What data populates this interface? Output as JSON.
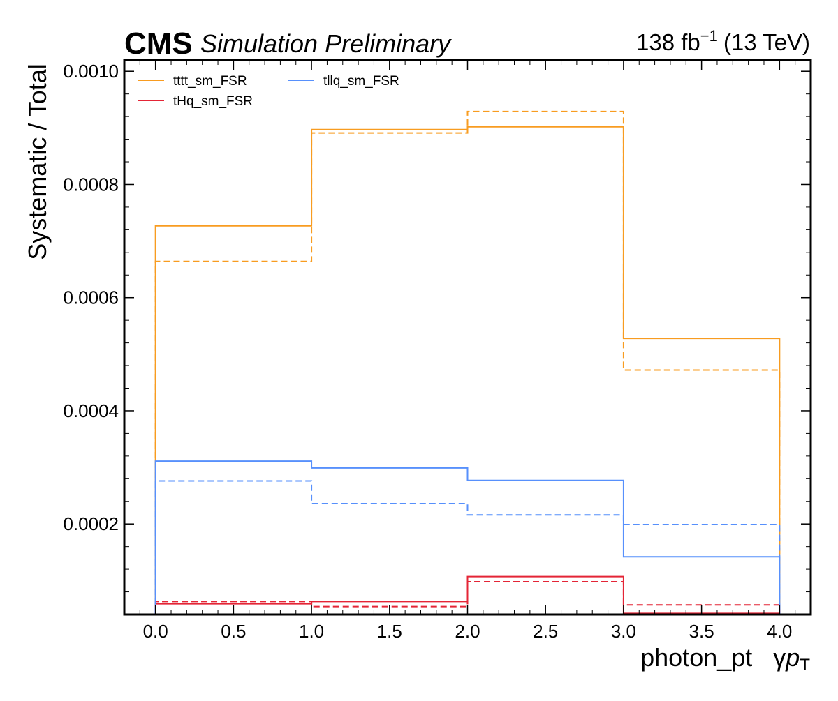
{
  "header": {
    "experiment": "CMS",
    "status": "Simulation Preliminary",
    "lumi_value": "138 fb",
    "lumi_exponent": "−1",
    "energy": "(13 TeV)"
  },
  "chart_data": {
    "type": "line",
    "drawstyle": "step-histogram",
    "xlabel": "photon_pt   γpT",
    "xlabel_parts": {
      "name": "photon_pt",
      "symbol": "γ",
      "var": "p",
      "sub": "T"
    },
    "ylabel": "Systematic / Total",
    "xlim": [
      -0.2,
      4.2
    ],
    "ylim": [
      4e-05,
      0.00102
    ],
    "bin_edges": [
      0.0,
      1.0,
      2.0,
      3.0,
      4.0
    ],
    "x_ticks": [
      "0.0",
      "0.5",
      "1.0",
      "1.5",
      "2.0",
      "2.5",
      "3.0",
      "3.5",
      "4.0"
    ],
    "y_ticks": [
      "0.0002",
      "0.0004",
      "0.0006",
      "0.0008",
      "0.0010"
    ],
    "legend": {
      "placement": "top-left",
      "columns": 2
    },
    "grid": false,
    "series": [
      {
        "name": "tttt_sm_FSR",
        "color": "#f89c20",
        "linestyle": "solid",
        "values": [
          0.000727,
          0.000897,
          0.000902,
          0.000528
        ]
      },
      {
        "name": "",
        "color": "#f89c20",
        "linestyle": "dashed",
        "values": [
          0.000664,
          0.000891,
          0.000929,
          0.000472
        ]
      },
      {
        "name": "tHq_sm_FSR",
        "color": "#e42536",
        "linestyle": "solid",
        "values": [
          5.9e-05,
          6.3e-05,
          0.000107,
          4.2e-05
        ]
      },
      {
        "name": "",
        "color": "#e42536",
        "linestyle": "dashed",
        "values": [
          6.3e-05,
          5.4e-05,
          9.8e-05,
          5.7e-05
        ]
      },
      {
        "name": "tllq_sm_FSR",
        "color": "#5790fc",
        "linestyle": "solid",
        "values": [
          0.000311,
          0.000299,
          0.000277,
          0.000142
        ]
      },
      {
        "name": "",
        "color": "#5790fc",
        "linestyle": "dashed",
        "values": [
          0.000276,
          0.000236,
          0.000216,
          0.000199
        ]
      }
    ]
  }
}
